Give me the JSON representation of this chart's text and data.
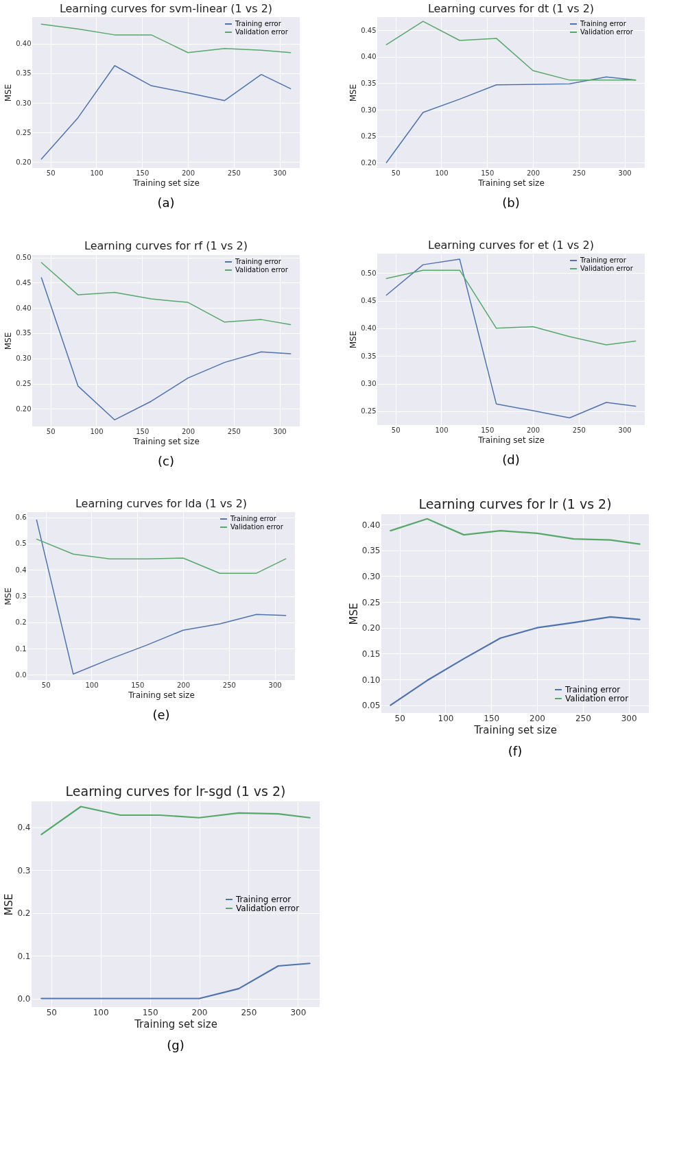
{
  "chart_data": [
    {
      "type": "line",
      "title": "Learning curves for svm-linear (1 vs 2)",
      "xlabel": "Training set size",
      "ylabel": "MSE",
      "x": [
        40,
        80,
        120,
        160,
        200,
        240,
        280,
        312
      ],
      "xlim": [
        30,
        322
      ],
      "xticks": [
        50,
        100,
        150,
        200,
        250,
        300
      ],
      "ylim": [
        0.19,
        0.445
      ],
      "yticks": [
        {
          "value": 0.2,
          "label": "0.20"
        },
        {
          "value": 0.25,
          "label": "0.25"
        },
        {
          "value": 0.3,
          "label": "0.30"
        },
        {
          "value": 0.35,
          "label": "0.35"
        },
        {
          "value": 0.4,
          "label": "0.40"
        }
      ],
      "grid": true,
      "legend": "top right",
      "annotations": [
        "(a)"
      ],
      "series": [
        {
          "name": "Training error",
          "color": "#4c72b0",
          "values": [
            0.205,
            0.275,
            0.363,
            0.329,
            0.317,
            0.304,
            0.348,
            0.324
          ]
        },
        {
          "name": "Validation error",
          "color": "#55a868",
          "values": [
            0.433,
            0.425,
            0.415,
            0.415,
            0.385,
            0.392,
            0.389,
            0.385
          ]
        }
      ]
    },
    {
      "type": "line",
      "title": "Learning curves for dt (1 vs 2)",
      "xlabel": "Training set size",
      "ylabel": "MSE",
      "x": [
        40,
        80,
        120,
        160,
        200,
        240,
        280,
        312
      ],
      "xlim": [
        30,
        322
      ],
      "xticks": [
        50,
        100,
        150,
        200,
        250,
        300
      ],
      "ylim": [
        0.19,
        0.475
      ],
      "yticks": [
        {
          "value": 0.2,
          "label": "0.20"
        },
        {
          "value": 0.25,
          "label": "0.25"
        },
        {
          "value": 0.3,
          "label": "0.30"
        },
        {
          "value": 0.35,
          "label": "0.35"
        },
        {
          "value": 0.4,
          "label": "0.40"
        },
        {
          "value": 0.45,
          "label": "0.45"
        }
      ],
      "grid": true,
      "legend": "top right",
      "annotations": [
        "(b)"
      ],
      "series": [
        {
          "name": "Training error",
          "color": "#4c72b0",
          "values": [
            0.2,
            0.295,
            0.32,
            0.347,
            0.348,
            0.349,
            0.362,
            0.356
          ]
        },
        {
          "name": "Validation error",
          "color": "#55a868",
          "values": [
            0.423,
            0.467,
            0.431,
            0.435,
            0.374,
            0.356,
            0.356,
            0.356
          ]
        }
      ]
    },
    {
      "type": "line",
      "title": "Learning curves for rf (1 vs 2)",
      "xlabel": "Training set size",
      "ylabel": "MSE",
      "x": [
        40,
        80,
        120,
        160,
        200,
        240,
        280,
        312
      ],
      "xlim": [
        30,
        322
      ],
      "xticks": [
        50,
        100,
        150,
        200,
        250,
        300
      ],
      "ylim": [
        0.165,
        0.505
      ],
      "yticks": [
        {
          "value": 0.2,
          "label": "0.20"
        },
        {
          "value": 0.25,
          "label": "0.25"
        },
        {
          "value": 0.3,
          "label": "0.30"
        },
        {
          "value": 0.35,
          "label": "0.35"
        },
        {
          "value": 0.4,
          "label": "0.40"
        },
        {
          "value": 0.45,
          "label": "0.45"
        },
        {
          "value": 0.5,
          "label": "0.50"
        }
      ],
      "grid": true,
      "legend": "top right",
      "annotations": [
        "(c)"
      ],
      "series": [
        {
          "name": "Training error",
          "color": "#4c72b0",
          "values": [
            0.46,
            0.245,
            0.178,
            0.215,
            0.261,
            0.292,
            0.313,
            0.309
          ]
        },
        {
          "name": "Validation error",
          "color": "#55a868",
          "values": [
            0.49,
            0.426,
            0.431,
            0.418,
            0.411,
            0.372,
            0.377,
            0.367
          ]
        }
      ]
    },
    {
      "type": "line",
      "title": "Learning curves for et (1 vs 2)",
      "xlabel": "Training set size",
      "ylabel": "MSE",
      "x": [
        40,
        80,
        120,
        160,
        200,
        240,
        280,
        312
      ],
      "xlim": [
        30,
        322
      ],
      "xticks": [
        50,
        100,
        150,
        200,
        250,
        300
      ],
      "ylim": [
        0.225,
        0.535
      ],
      "yticks": [
        {
          "value": 0.25,
          "label": "0.25"
        },
        {
          "value": 0.3,
          "label": "0.30"
        },
        {
          "value": 0.35,
          "label": "0.35"
        },
        {
          "value": 0.4,
          "label": "0.40"
        },
        {
          "value": 0.45,
          "label": "0.45"
        },
        {
          "value": 0.5,
          "label": "0.50"
        }
      ],
      "grid": true,
      "legend": "top right",
      "annotations": [
        "(d)"
      ],
      "series": [
        {
          "name": "Training error",
          "color": "#4c72b0",
          "values": [
            0.46,
            0.515,
            0.525,
            0.263,
            0.251,
            0.238,
            0.266,
            0.259
          ]
        },
        {
          "name": "Validation error",
          "color": "#55a868",
          "values": [
            0.49,
            0.505,
            0.505,
            0.4,
            0.403,
            0.385,
            0.37,
            0.377
          ]
        }
      ]
    },
    {
      "type": "line",
      "title": "Learning curves for lda (1 vs 2)",
      "xlabel": "Training set size",
      "ylabel": "MSE",
      "x": [
        40,
        80,
        120,
        160,
        200,
        240,
        280,
        312
      ],
      "xlim": [
        30,
        322
      ],
      "xticks": [
        50,
        100,
        150,
        200,
        250,
        300
      ],
      "ylim": [
        -0.02,
        0.62
      ],
      "yticks": [
        {
          "value": 0,
          "label": "0.0"
        },
        0.1,
        0.2,
        0.3,
        0.4,
        0.5,
        0.6
      ],
      "grid": true,
      "legend": "top right",
      "annotations": [
        "(e)"
      ],
      "series": [
        {
          "name": "Training error",
          "color": "#4c72b0",
          "values": [
            0.59,
            0.003,
            0.06,
            0.113,
            0.17,
            0.194,
            0.23,
            0.226
          ]
        },
        {
          "name": "Validation error",
          "color": "#55a868",
          "values": [
            0.517,
            0.46,
            0.442,
            0.442,
            0.445,
            0.387,
            0.387,
            0.442
          ]
        }
      ]
    },
    {
      "type": "line",
      "title": "Learning curves for lr (1 vs 2)",
      "xlabel": "Training set size",
      "ylabel": "MSE",
      "x": [
        40,
        80,
        120,
        160,
        200,
        240,
        280,
        312
      ],
      "xlim": [
        30,
        322
      ],
      "xticks": [
        50,
        100,
        150,
        200,
        250,
        300
      ],
      "ylim": [
        0.035,
        0.42
      ],
      "yticks": [
        0.05,
        {
          "value": 0.1,
          "label": "0.10"
        },
        0.15,
        {
          "value": 0.2,
          "label": "0.20"
        },
        0.25,
        {
          "value": 0.3,
          "label": "0.30"
        },
        0.35,
        {
          "value": 0.4,
          "label": "0.40"
        }
      ],
      "grid": true,
      "legend": "bottom right",
      "annotations": [
        "(f)"
      ],
      "series": [
        {
          "name": "Training error",
          "color": "#4c72b0",
          "values": [
            0.05,
            0.098,
            0.14,
            0.18,
            0.2,
            0.21,
            0.221,
            0.216
          ]
        },
        {
          "name": "Validation error",
          "color": "#55a868",
          "values": [
            0.388,
            0.411,
            0.38,
            0.388,
            0.383,
            0.372,
            0.37,
            0.362
          ]
        }
      ]
    },
    {
      "type": "line",
      "title": "Learning curves for lr-sgd (1 vs 2)",
      "xlabel": "Training set size",
      "ylabel": "MSE",
      "x": [
        40,
        80,
        120,
        160,
        200,
        240,
        280,
        312
      ],
      "xlim": [
        30,
        322
      ],
      "xticks": [
        50,
        100,
        150,
        200,
        250,
        300
      ],
      "ylim": [
        -0.02,
        0.46
      ],
      "yticks": [
        {
          "value": 0,
          "label": "0.0"
        },
        0.1,
        0.2,
        0.3,
        0.4
      ],
      "grid": true,
      "legend": "right",
      "annotations": [
        "(g)"
      ],
      "series": [
        {
          "name": "Training error",
          "color": "#4c72b0",
          "values": [
            0,
            0,
            0,
            0,
            0,
            0.023,
            0.076,
            0.082
          ]
        },
        {
          "name": "Validation error",
          "color": "#55a868",
          "values": [
            0.383,
            0.448,
            0.428,
            0.428,
            0.422,
            0.433,
            0.431,
            0.422
          ]
        }
      ]
    }
  ]
}
